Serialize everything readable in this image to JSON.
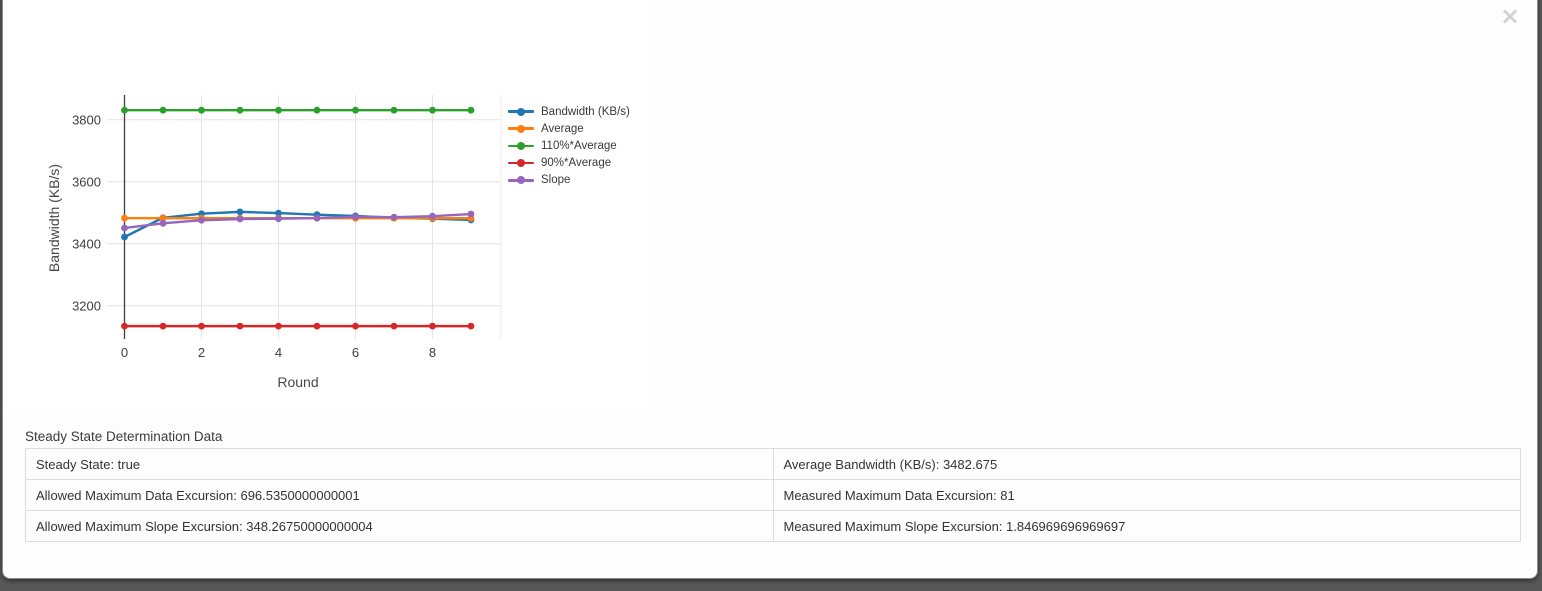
{
  "modal": {
    "close_icon": "×"
  },
  "chart_data": {
    "type": "line",
    "x": [
      0,
      1,
      2,
      3,
      4,
      5,
      6,
      7,
      8,
      9
    ],
    "xlabel": "Round",
    "ylabel": "Bandwidth (KB/s)",
    "xticks": [
      0,
      2,
      4,
      6,
      8
    ],
    "yticks": [
      3200,
      3400,
      3600,
      3800
    ],
    "xlim": [
      0,
      9.78
    ],
    "ylim": [
      3080,
      3880
    ],
    "grid": true,
    "legend_position": "right",
    "series": [
      {
        "name": "Bandwidth (KB/s)",
        "color": "#1f77b4",
        "values": [
          3422,
          3484,
          3497,
          3503,
          3499,
          3494,
          3490,
          3484,
          3481,
          3477
        ]
      },
      {
        "name": "Average",
        "color": "#ff7f0e",
        "values": [
          3482.675,
          3482.675,
          3482.675,
          3482.675,
          3482.675,
          3482.675,
          3482.675,
          3482.675,
          3482.675,
          3482.675
        ]
      },
      {
        "name": "110%*Average",
        "color": "#2ca02c",
        "values": [
          3830.9425,
          3830.9425,
          3830.9425,
          3830.9425,
          3830.9425,
          3830.9425,
          3830.9425,
          3830.9425,
          3830.9425,
          3830.9425
        ]
      },
      {
        "name": "90%*Average",
        "color": "#d62728",
        "values": [
          3134.4075,
          3134.4075,
          3134.4075,
          3134.4075,
          3134.4075,
          3134.4075,
          3134.4075,
          3134.4075,
          3134.4075,
          3134.4075
        ]
      },
      {
        "name": "Slope",
        "color": "#9467bd",
        "values": [
          3451,
          3466,
          3476,
          3480,
          3481,
          3483,
          3487,
          3486,
          3489,
          3496
        ]
      }
    ]
  },
  "table": {
    "title": "Steady State Determination Data",
    "rows": [
      {
        "left": "Steady State: true",
        "right": "Average Bandwidth (KB/s): 3482.675"
      },
      {
        "left": "Allowed Maximum Data Excursion: 696.5350000000001",
        "right": "Measured Maximum Data Excursion: 81"
      },
      {
        "left": "Allowed Maximum Slope Excursion: 348.26750000000004",
        "right": "Measured Maximum Slope Excursion: 1.846969696969697"
      }
    ]
  }
}
